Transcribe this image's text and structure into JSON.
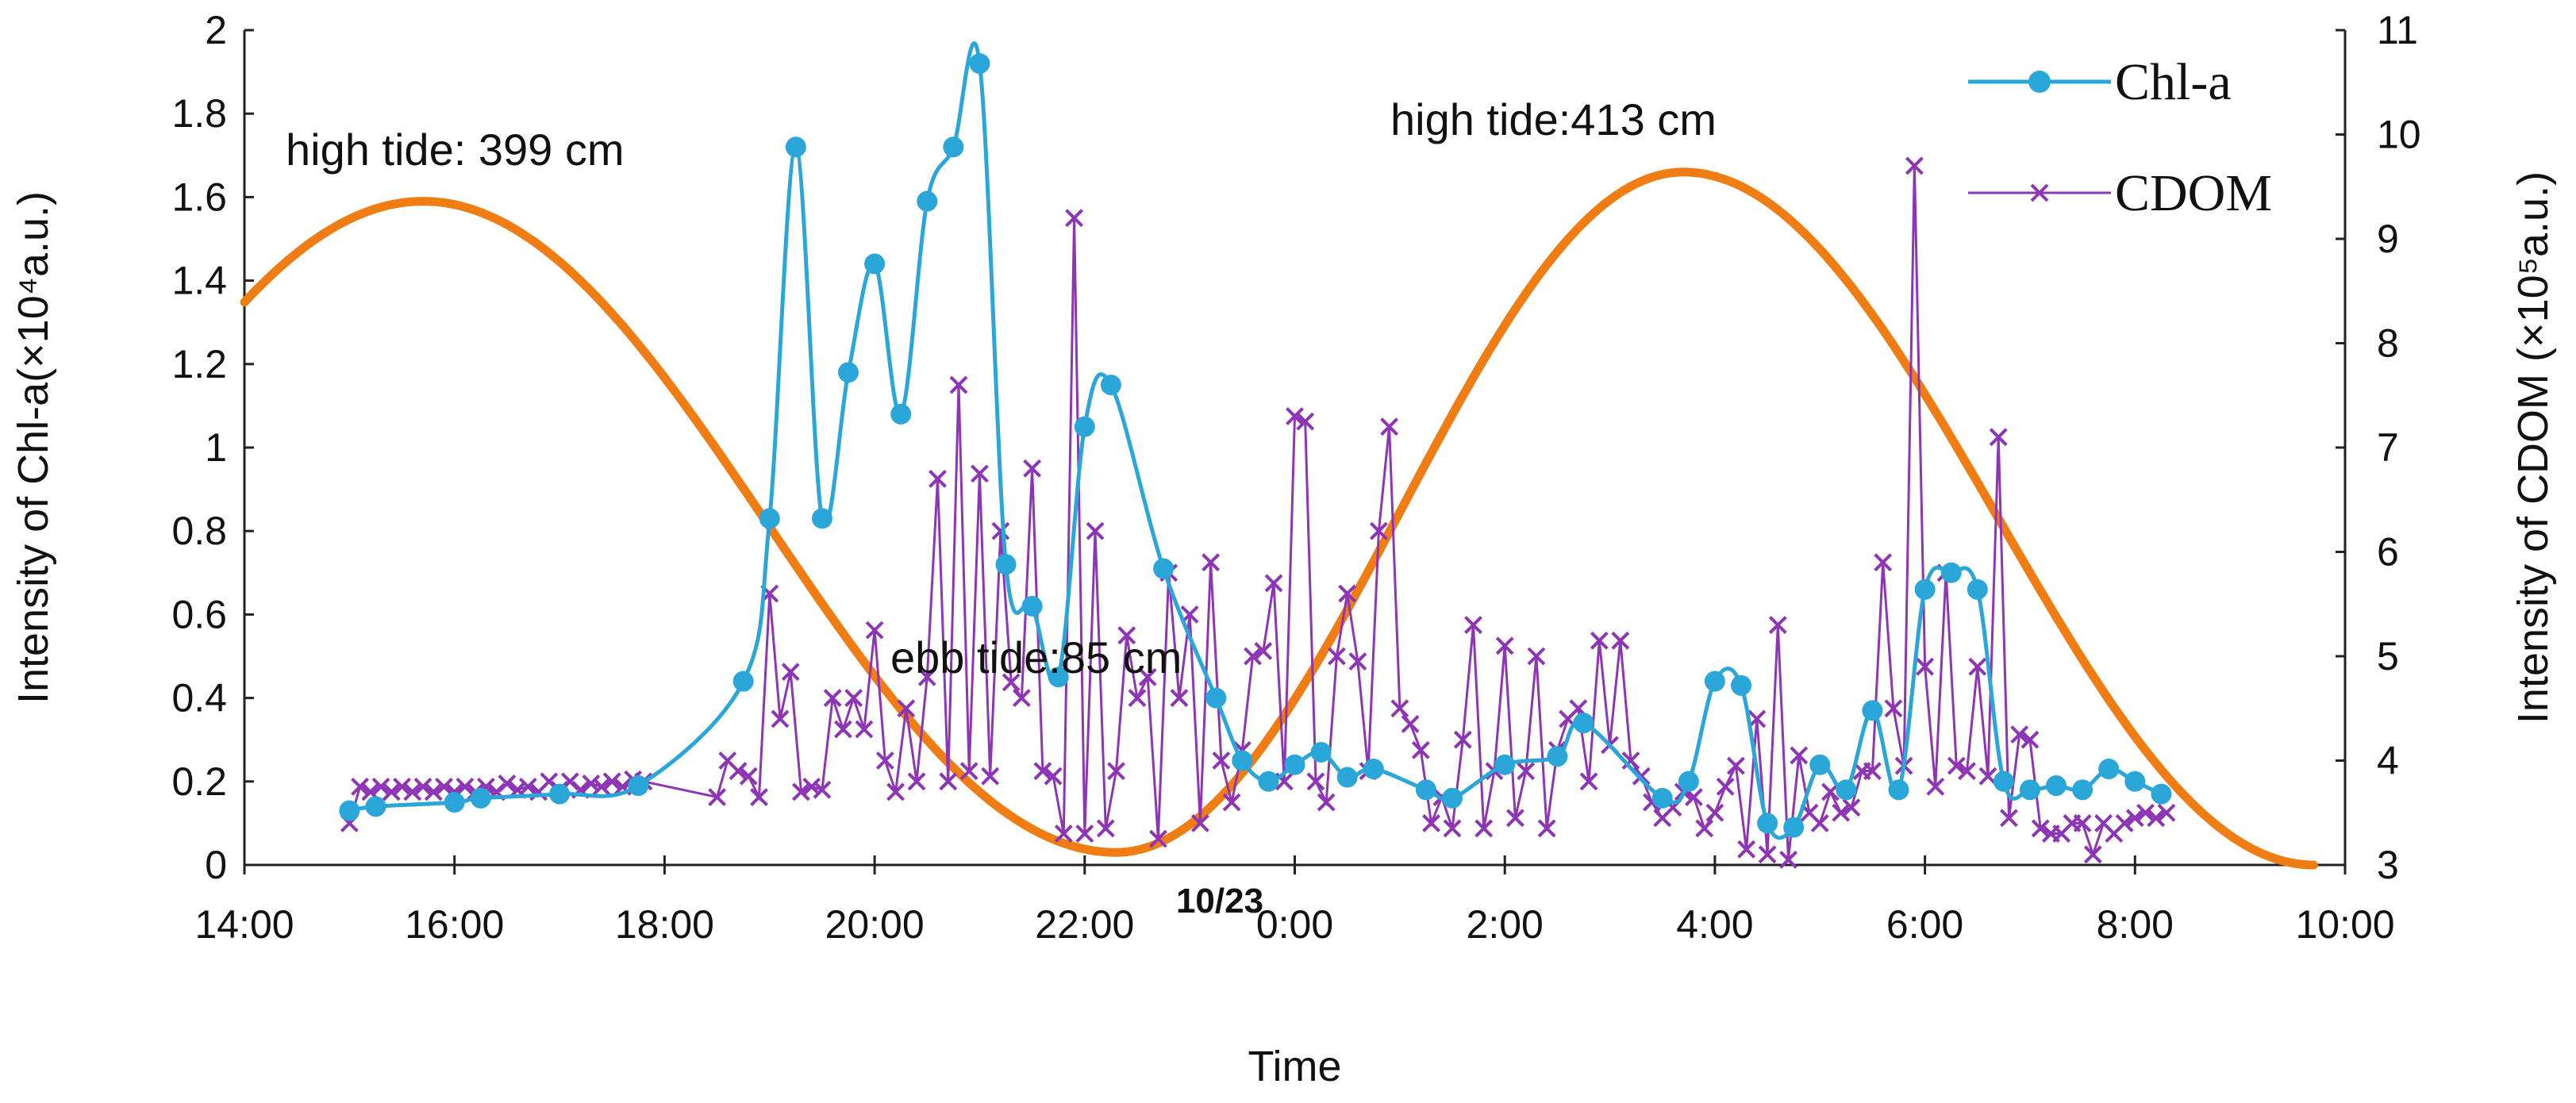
{
  "chart_data": {
    "type": "line",
    "xlabel": "Time",
    "ylabel_left": "Intensity of Chl-a(×10⁴a.u.)",
    "ylabel_right": "Intensity of CDOM (×10⁵a.u.)",
    "x_ticks": [
      "14:00",
      "16:00",
      "18:00",
      "20:00",
      "22:00",
      "0:00",
      "2:00",
      "4:00",
      "6:00",
      "8:00",
      "10:00"
    ],
    "xlim": [
      14,
      34
    ],
    "date_label": "10/23",
    "y_left": {
      "ticks": [
        "0",
        "0.2",
        "0.4",
        "0.6",
        "0.8",
        "1",
        "1.2",
        "1.4",
        "1.6",
        "1.8",
        "2"
      ],
      "lim": [
        0,
        2
      ]
    },
    "y_right": {
      "ticks": [
        "3",
        "4",
        "5",
        "6",
        "7",
        "8",
        "9",
        "10",
        "11"
      ],
      "lim": [
        3,
        11
      ]
    },
    "legend": [
      "Chl-a",
      "CDOM"
    ],
    "colors": {
      "chla": "#2aa6d8",
      "cdom": "#8e35b6",
      "tide": "#f07d14"
    },
    "annotations": [
      "high tide: 399 cm",
      "high tide:413 cm",
      "ebb tide:85 cm"
    ],
    "tide": {
      "start_value": 1.25,
      "peaks": [
        [
          15.7,
          1.59
        ],
        [
          27.7,
          1.66
        ]
      ],
      "troughs": [
        [
          22.3,
          0.03
        ],
        [
          33.7,
          0.0
        ]
      ]
    },
    "series": [
      {
        "name": "Chl-a",
        "axis": "left",
        "x": [
          15.0,
          15.25,
          16.0,
          16.25,
          17.0,
          17.75,
          18.75,
          19.0,
          19.25,
          19.5,
          19.75,
          20.0,
          20.25,
          20.5,
          20.75,
          21.0,
          21.25,
          21.5,
          21.75,
          22.0,
          22.25,
          22.75,
          23.25,
          23.5,
          23.75,
          24.0,
          24.25,
          24.5,
          24.75,
          25.25,
          25.5,
          26.0,
          26.5,
          26.75,
          27.5,
          27.75,
          28.0,
          28.25,
          28.5,
          28.75,
          29.0,
          29.25,
          29.5,
          29.75,
          30.0,
          30.25,
          30.5,
          30.75,
          31.0,
          31.25,
          31.5,
          31.75,
          32.0,
          32.25
        ],
        "y": [
          0.13,
          0.14,
          0.15,
          0.16,
          0.17,
          0.19,
          0.44,
          0.83,
          1.72,
          0.83,
          1.18,
          1.44,
          1.08,
          1.59,
          1.72,
          1.92,
          0.72,
          0.62,
          0.45,
          1.05,
          1.15,
          0.71,
          0.4,
          0.25,
          0.2,
          0.24,
          0.27,
          0.21,
          0.23,
          0.18,
          0.16,
          0.24,
          0.26,
          0.34,
          0.16,
          0.2,
          0.44,
          0.43,
          0.1,
          0.09,
          0.24,
          0.18,
          0.37,
          0.18,
          0.66,
          0.7,
          0.66,
          0.2,
          0.18,
          0.19,
          0.18,
          0.23,
          0.2,
          0.17
        ]
      },
      {
        "name": "CDOM",
        "axis": "right",
        "x": [
          15.0,
          15.1,
          15.2,
          15.3,
          15.4,
          15.5,
          15.6,
          15.7,
          15.8,
          15.9,
          16.0,
          16.1,
          16.2,
          16.3,
          16.4,
          16.5,
          16.6,
          16.7,
          16.8,
          16.9,
          17.0,
          17.1,
          17.2,
          17.3,
          17.4,
          17.5,
          17.6,
          17.7,
          17.8,
          18.5,
          18.6,
          18.7,
          18.8,
          18.9,
          19.0,
          19.1,
          19.2,
          19.3,
          19.4,
          19.5,
          19.6,
          19.7,
          19.8,
          19.9,
          20.0,
          20.1,
          20.2,
          20.3,
          20.4,
          20.5,
          20.6,
          20.7,
          20.8,
          20.9,
          21.0,
          21.1,
          21.2,
          21.3,
          21.4,
          21.5,
          21.6,
          21.7,
          21.8,
          21.9,
          22.0,
          22.1,
          22.2,
          22.3,
          22.4,
          22.5,
          22.6,
          22.7,
          22.8,
          22.9,
          23.0,
          23.1,
          23.2,
          23.3,
          23.4,
          23.5,
          23.6,
          23.7,
          23.8,
          23.9,
          24.0,
          24.1,
          24.2,
          24.3,
          24.4,
          24.5,
          24.6,
          24.7,
          24.8,
          24.9,
          25.0,
          25.1,
          25.2,
          25.3,
          25.4,
          25.5,
          25.6,
          25.7,
          25.8,
          25.9,
          26.0,
          26.1,
          26.2,
          26.3,
          26.4,
          26.5,
          26.6,
          26.7,
          26.8,
          26.9,
          27.0,
          27.1,
          27.2,
          27.3,
          27.4,
          27.5,
          27.6,
          27.7,
          27.8,
          27.9,
          28.0,
          28.1,
          28.2,
          28.3,
          28.4,
          28.5,
          28.6,
          28.7,
          28.8,
          28.9,
          29.0,
          29.1,
          29.2,
          29.3,
          29.4,
          29.5,
          29.6,
          29.7,
          29.8,
          29.9,
          30.0,
          30.1,
          30.2,
          30.3,
          30.4,
          30.5,
          30.6,
          30.7,
          30.8,
          30.9,
          31.0,
          31.1,
          31.2,
          31.3,
          31.4,
          31.5,
          31.6,
          31.7,
          31.8,
          31.9,
          32.0,
          32.1,
          32.2,
          32.3
        ],
        "y": [
          3.4,
          3.75,
          3.7,
          3.75,
          3.7,
          3.75,
          3.7,
          3.75,
          3.7,
          3.75,
          3.7,
          3.75,
          3.7,
          3.75,
          3.7,
          3.78,
          3.72,
          3.75,
          3.7,
          3.8,
          3.72,
          3.8,
          3.72,
          3.78,
          3.75,
          3.8,
          3.75,
          3.82,
          3.8,
          3.65,
          4.0,
          3.9,
          3.85,
          3.65,
          5.6,
          4.4,
          4.85,
          3.7,
          3.75,
          3.72,
          4.6,
          4.3,
          4.6,
          4.3,
          5.25,
          4.0,
          3.7,
          4.5,
          3.8,
          4.8,
          6.7,
          3.8,
          7.6,
          3.9,
          6.75,
          3.85,
          6.2,
          4.75,
          4.6,
          6.8,
          3.9,
          3.85,
          3.3,
          9.2,
          3.3,
          6.2,
          3.35,
          3.9,
          5.2,
          4.6,
          4.8,
          3.25,
          5.8,
          4.6,
          5.4,
          3.4,
          5.9,
          4.0,
          3.6,
          4.1,
          5.0,
          5.05,
          5.7,
          3.8,
          7.3,
          7.25,
          3.8,
          3.6,
          5.0,
          5.6,
          4.95,
          3.9,
          6.2,
          7.2,
          4.5,
          4.35,
          4.1,
          3.4,
          3.65,
          3.35,
          4.2,
          5.3,
          3.35,
          3.9,
          5.1,
          3.45,
          3.9,
          5.0,
          3.35,
          4.1,
          4.4,
          4.5,
          3.8,
          5.15,
          4.15,
          5.15,
          4.0,
          3.85,
          3.6,
          3.45,
          3.55,
          3.7,
          3.65,
          3.35,
          3.5,
          3.75,
          3.95,
          3.15,
          4.4,
          3.1,
          5.3,
          3.05,
          4.05,
          3.5,
          3.4,
          3.7,
          3.5,
          3.55,
          3.9,
          3.9,
          5.9,
          4.5,
          3.95,
          9.7,
          4.9,
          3.75,
          5.8,
          3.95,
          3.9,
          4.9,
          3.85,
          7.1,
          3.45,
          4.25,
          4.2,
          3.35,
          3.3,
          3.3,
          3.4,
          3.4,
          3.1,
          3.4,
          3.3,
          3.4,
          3.45,
          3.5,
          3.45,
          3.5
        ]
      }
    ]
  }
}
